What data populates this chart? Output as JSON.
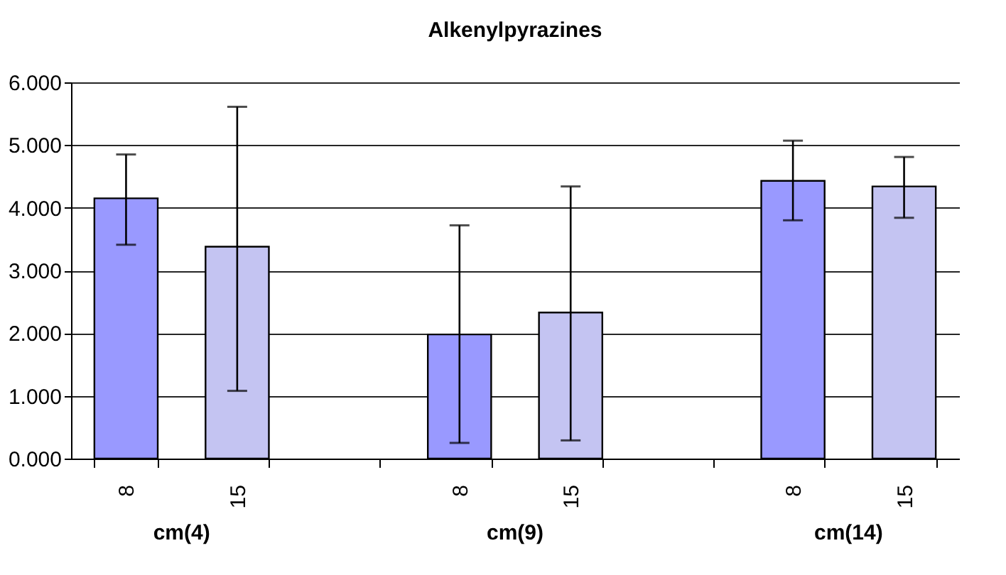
{
  "chart_data": {
    "type": "bar",
    "title": "Alkenylpyrazines",
    "categories": [
      "8",
      "15",
      null,
      "8",
      "15",
      null,
      "8",
      "15"
    ],
    "values": [
      4.15,
      3.38,
      null,
      1.98,
      2.33,
      null,
      4.43,
      4.34
    ],
    "colors": [
      "#9999ff",
      "#c4c4f2",
      "#9999ff",
      "#9999ff",
      "#c4c4f2",
      "#9999ff",
      "#9999ff",
      "#c4c4f2"
    ],
    "errors": [
      [
        3.41,
        4.85
      ],
      [
        1.08,
        5.61
      ],
      null,
      [
        0.25,
        3.72
      ],
      [
        0.29,
        4.34
      ],
      null,
      [
        3.8,
        5.07
      ],
      [
        3.84,
        4.81
      ]
    ],
    "ylim": [
      0,
      6
    ],
    "yticks": [
      {
        "value": 0,
        "label": "0.000"
      },
      {
        "value": 1,
        "label": "1.000"
      },
      {
        "value": 2,
        "label": "2.000"
      },
      {
        "value": 3,
        "label": "3.000"
      },
      {
        "value": 4,
        "label": "4.000"
      },
      {
        "value": 5,
        "label": "5.000"
      },
      {
        "value": 6,
        "label": "6.000"
      }
    ],
    "grid": "y",
    "annotations": [
      "cm(4)",
      "cm(9)",
      "cm(14)"
    ]
  }
}
